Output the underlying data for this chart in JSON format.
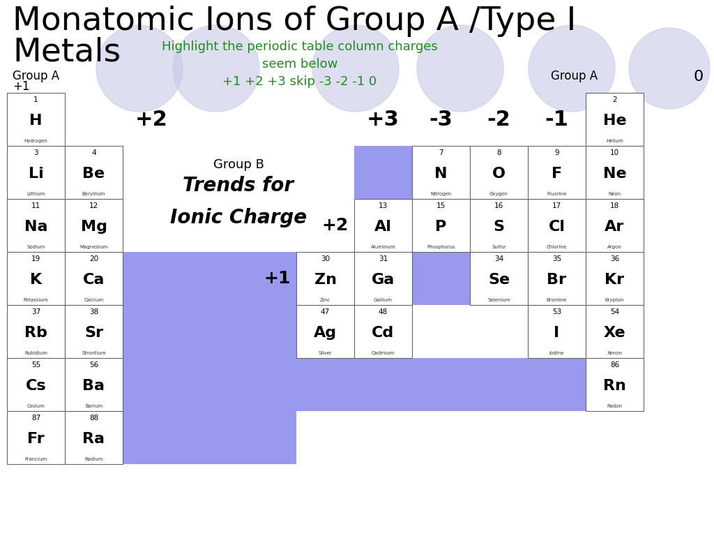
{
  "title_line1": "Monatomic Ions of Group A /Type I",
  "title_line2": "Metals",
  "subtitle_green": "Highlight the periodic table column charges\nseem below\n+1 +2 +3 skip -3 -2 -1 0",
  "bg_color": "#ffffff",
  "cell_bg_blue": "#9999ee",
  "circle_color": "#c8c8e8",
  "elements": [
    {
      "num": "1",
      "sym": "H",
      "name": "Hydrogen",
      "col": 0,
      "row": 0
    },
    {
      "num": "3",
      "sym": "Li",
      "name": "Lithium",
      "col": 0,
      "row": 1
    },
    {
      "num": "4",
      "sym": "Be",
      "name": "Beryllium",
      "col": 1,
      "row": 1
    },
    {
      "num": "11",
      "sym": "Na",
      "name": "Sodium",
      "col": 0,
      "row": 2
    },
    {
      "num": "12",
      "sym": "Mg",
      "name": "Magnesium",
      "col": 1,
      "row": 2
    },
    {
      "num": "19",
      "sym": "K",
      "name": "Potassium",
      "col": 0,
      "row": 3
    },
    {
      "num": "20",
      "sym": "Ca",
      "name": "Calcium",
      "col": 1,
      "row": 3
    },
    {
      "num": "37",
      "sym": "Rb",
      "name": "Rubidium",
      "col": 0,
      "row": 4
    },
    {
      "num": "38",
      "sym": "Sr",
      "name": "Strontium",
      "col": 1,
      "row": 4
    },
    {
      "num": "55",
      "sym": "Cs",
      "name": "Cesium",
      "col": 0,
      "row": 5
    },
    {
      "num": "56",
      "sym": "Ba",
      "name": "Barium",
      "col": 1,
      "row": 5
    },
    {
      "num": "87",
      "sym": "Fr",
      "name": "Francium",
      "col": 0,
      "row": 6
    },
    {
      "num": "88",
      "sym": "Ra",
      "name": "Radium",
      "col": 1,
      "row": 6
    },
    {
      "num": "2",
      "sym": "He",
      "name": "Helium",
      "col": 10,
      "row": 0
    },
    {
      "num": "7",
      "sym": "N",
      "name": "Nitrogen",
      "col": 7,
      "row": 1
    },
    {
      "num": "8",
      "sym": "O",
      "name": "Oxygen",
      "col": 8,
      "row": 1
    },
    {
      "num": "9",
      "sym": "F",
      "name": "Fluorine",
      "col": 9,
      "row": 1
    },
    {
      "num": "10",
      "sym": "Ne",
      "name": "Neon",
      "col": 10,
      "row": 1
    },
    {
      "num": "13",
      "sym": "Al",
      "name": "Aluminum",
      "col": 6,
      "row": 2
    },
    {
      "num": "15",
      "sym": "P",
      "name": "Phosphorus",
      "col": 7,
      "row": 2
    },
    {
      "num": "16",
      "sym": "S",
      "name": "Sulfur",
      "col": 8,
      "row": 2
    },
    {
      "num": "17",
      "sym": "Cl",
      "name": "Chlorine",
      "col": 9,
      "row": 2
    },
    {
      "num": "18",
      "sym": "Ar",
      "name": "Argon",
      "col": 10,
      "row": 2
    },
    {
      "num": "30",
      "sym": "Zn",
      "name": "Zinc",
      "col": 5,
      "row": 3
    },
    {
      "num": "31",
      "sym": "Ga",
      "name": "Gallium",
      "col": 6,
      "row": 3
    },
    {
      "num": "34",
      "sym": "Se",
      "name": "Selenium",
      "col": 8,
      "row": 3
    },
    {
      "num": "35",
      "sym": "Br",
      "name": "Bromine",
      "col": 9,
      "row": 3
    },
    {
      "num": "36",
      "sym": "Kr",
      "name": "Krypton",
      "col": 10,
      "row": 3
    },
    {
      "num": "47",
      "sym": "Ag",
      "name": "Silver",
      "col": 5,
      "row": 4
    },
    {
      "num": "48",
      "sym": "Cd",
      "name": "Cadmium",
      "col": 6,
      "row": 4
    },
    {
      "num": "53",
      "sym": "I",
      "name": "Iodine",
      "col": 9,
      "row": 4
    },
    {
      "num": "54",
      "sym": "Xe",
      "name": "Xenon",
      "col": 10,
      "row": 4
    },
    {
      "num": "86",
      "sym": "Rn",
      "name": "Radon",
      "col": 10,
      "row": 5
    }
  ]
}
